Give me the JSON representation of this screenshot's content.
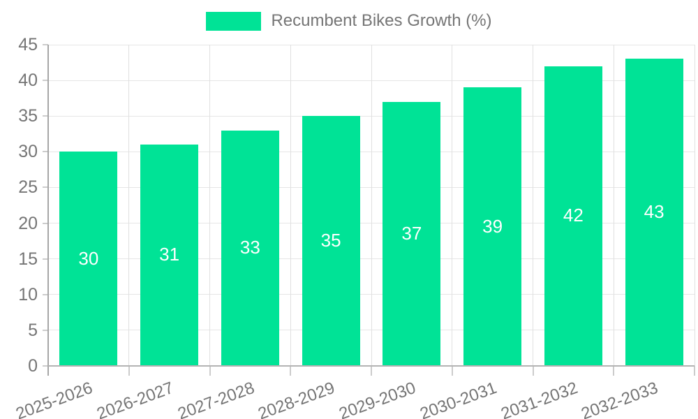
{
  "legend": {
    "label": "Recumbent Bikes Growth (%)"
  },
  "chart_data": {
    "type": "bar",
    "title": "",
    "legend_entries": [
      "Recumbent Bikes Growth (%)"
    ],
    "legend_position": "top-center",
    "categories": [
      "2025-2026",
      "2026-2027",
      "2027-2028",
      "2028-2029",
      "2029-2030",
      "2030-2031",
      "2031-2032",
      "2032-2033"
    ],
    "series": [
      {
        "name": "Recumbent Bikes Growth (%)",
        "values": [
          30,
          31,
          33,
          35,
          37,
          39,
          42,
          43
        ]
      }
    ],
    "bar_value_labels": [
      30,
      31,
      33,
      35,
      37,
      39,
      42,
      43
    ],
    "xlabel": "",
    "ylabel": "",
    "ylim": [
      0,
      45
    ],
    "y_ticks": [
      0,
      5,
      10,
      15,
      20,
      25,
      30,
      35,
      40,
      45
    ],
    "grid": true,
    "x_label_rotation_deg": -20
  },
  "colors": {
    "bar": "#00E396",
    "bar_label": "#FFFFFF",
    "text": "#757575",
    "axis_y": "#A6A6A6",
    "axis_x": "#B3B3B3",
    "grid_h": "#E6E6E6",
    "grid_v": "#E0E0E0",
    "tick": "#CCCCCC"
  }
}
